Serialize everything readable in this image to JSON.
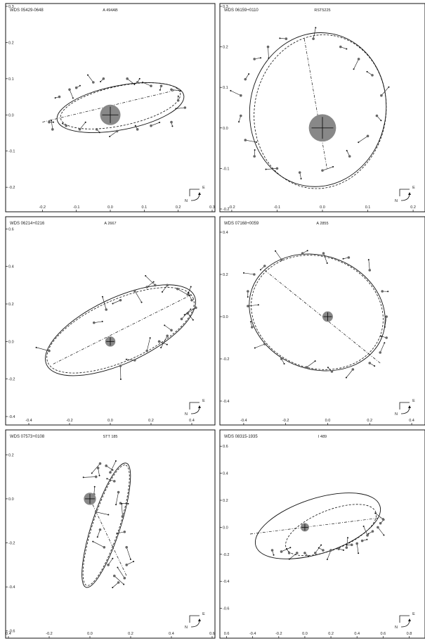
{
  "chart_data": [
    {
      "type": "scatter",
      "title": "WDS 05429-0648",
      "subtitle": "A  494AB",
      "xticks": [
        "-0.2",
        "-0.1",
        "0.0",
        "0.1",
        "0.2",
        "0.3"
      ],
      "yticks": [
        "0.3",
        "0.2",
        "0.1",
        "0.0",
        "-0.1",
        "-0.2"
      ],
      "xlim": [
        -0.3,
        0.3
      ],
      "ylim": [
        -0.26,
        0.3
      ],
      "compass": [
        "N",
        "E"
      ],
      "orbit": {
        "cx": 0.03,
        "cy": 0.02,
        "a": 0.19,
        "b": 0.065,
        "rot": 11
      },
      "orbit2": {
        "cx": 0.03,
        "cy": 0.025,
        "a": 0.18,
        "b": 0.058,
        "rot": 12
      },
      "node_line": [
        [
          -0.2,
          -0.02
        ],
        [
          0.2,
          0.07
        ]
      ],
      "primary": {
        "x": 0,
        "y": 0,
        "r": 0.03
      },
      "obs": [
        [
          -0.18,
          -0.02
        ],
        [
          -0.17,
          -0.04
        ],
        [
          -0.15,
          0.05
        ],
        [
          -0.12,
          0.07
        ],
        [
          -0.1,
          0.075
        ],
        [
          -0.05,
          0.09
        ],
        [
          -0.02,
          0.1
        ],
        [
          0.05,
          0.1
        ],
        [
          0.08,
          0.09
        ],
        [
          0.12,
          0.08
        ],
        [
          0.15,
          0.08
        ],
        [
          0.18,
          0.07
        ],
        [
          0.2,
          0.04
        ],
        [
          0.22,
          0.02
        ],
        [
          0.18,
          -0.02
        ],
        [
          0.12,
          -0.03
        ],
        [
          0.08,
          -0.04
        ],
        [
          0.02,
          -0.045
        ],
        [
          -0.04,
          -0.04
        ],
        [
          -0.09,
          -0.04
        ],
        [
          -0.13,
          -0.03
        ]
      ]
    },
    {
      "type": "scatter",
      "title": "WDS 06159+0110",
      "subtitle": "RST5225",
      "xticks": [
        "-0.2",
        "-0.1",
        "0.0",
        "0.1",
        "0.2"
      ],
      "yticks": [
        "0.3",
        "0.2",
        "0.1",
        "0.0",
        "-0.1",
        "-0.2"
      ],
      "xlim": [
        -0.22,
        0.22
      ],
      "ylim": [
        -0.2,
        0.3
      ],
      "compass": [
        "N",
        "E"
      ],
      "orbit": {
        "cx": -0.01,
        "cy": 0.045,
        "a": 0.17,
        "b": 0.15,
        "rot": 80
      },
      "orbit2": {
        "cx": -0.005,
        "cy": 0.04,
        "a": 0.17,
        "b": 0.145,
        "rot": 80
      },
      "node_line": [
        [
          -0.04,
          0.22
        ],
        [
          0.01,
          -0.1
        ]
      ],
      "primary": {
        "x": 0,
        "y": 0,
        "r": 0.03
      },
      "obs": [
        [
          -0.17,
          0.12
        ],
        [
          -0.18,
          0.08
        ],
        [
          -0.18,
          0.03
        ],
        [
          -0.17,
          -0.03
        ],
        [
          -0.15,
          -0.07
        ],
        [
          -0.1,
          -0.1
        ],
        [
          -0.05,
          -0.11
        ],
        [
          0.0,
          -0.105
        ],
        [
          0.06,
          -0.07
        ],
        [
          0.1,
          -0.02
        ],
        [
          0.12,
          0.03
        ],
        [
          0.13,
          0.08
        ],
        [
          0.11,
          0.13
        ],
        [
          0.08,
          0.17
        ],
        [
          0.04,
          0.2
        ],
        [
          -0.02,
          0.22
        ],
        [
          -0.08,
          0.22
        ],
        [
          -0.12,
          0.2
        ],
        [
          -0.15,
          0.17
        ]
      ]
    },
    {
      "type": "scatter",
      "title": "WDS 06214+0216",
      "subtitle": "A  2667",
      "xticks": [
        "-0.4",
        "-0.2",
        "0.0",
        "0.2",
        "0.4"
      ],
      "yticks": [
        "0.6",
        "0.4",
        "0.2",
        "0.0",
        "-0.2",
        "-0.4"
      ],
      "xlim": [
        -0.5,
        0.5
      ],
      "ylim": [
        -0.43,
        0.65
      ],
      "compass": [
        "N",
        "E"
      ],
      "orbit": {
        "cx": 0.05,
        "cy": 0.06,
        "a": 0.4,
        "b": 0.16,
        "rot": 25
      },
      "orbit2": {
        "cx": 0.05,
        "cy": 0.06,
        "a": 0.39,
        "b": 0.15,
        "rot": 24
      },
      "node_line": [
        [
          -0.28,
          -0.12
        ],
        [
          0.4,
          0.25
        ]
      ],
      "primary": {
        "x": 0,
        "y": 0,
        "r": 0.025
      },
      "obs": [
        [
          0.4,
          0.22
        ],
        [
          0.42,
          0.18
        ],
        [
          0.38,
          0.15
        ],
        [
          0.35,
          0.12
        ],
        [
          0.3,
          0.06
        ],
        [
          0.28,
          0.03
        ],
        [
          0.24,
          0.0
        ],
        [
          0.18,
          -0.05
        ],
        [
          0.12,
          -0.1
        ],
        [
          0.05,
          -0.13
        ],
        [
          -0.08,
          0.1
        ],
        [
          -0.02,
          0.17
        ],
        [
          0.05,
          0.22
        ],
        [
          0.12,
          0.27
        ],
        [
          0.18,
          0.29
        ],
        [
          0.22,
          0.3
        ],
        [
          0.28,
          0.3
        ],
        [
          0.33,
          0.28
        ],
        [
          0.38,
          0.25
        ],
        [
          -0.3,
          -0.05
        ]
      ]
    },
    {
      "type": "scatter",
      "title": "WDS 07168+0059",
      "subtitle": "A  2855",
      "xticks": [
        "-0.4",
        "-0.2",
        "0.0",
        "0.2",
        "0.4"
      ],
      "yticks": [
        "0.4",
        "0.2",
        "0.0",
        "-0.2",
        "-0.4"
      ],
      "xlim": [
        -0.5,
        0.45
      ],
      "ylim": [
        -0.5,
        0.46
      ],
      "compass": [
        "N",
        "E"
      ],
      "orbit": {
        "cx": -0.05,
        "cy": 0.02,
        "a": 0.33,
        "b": 0.27,
        "rot": -20
      },
      "orbit2": {
        "cx": -0.05,
        "cy": 0.02,
        "a": 0.32,
        "b": 0.265,
        "rot": -20
      },
      "node_line": [
        [
          -0.3,
          0.22
        ],
        [
          0.25,
          -0.22
        ]
      ],
      "primary": {
        "x": 0,
        "y": 0,
        "r": 0.025
      },
      "obs": [
        [
          -0.35,
          0.2
        ],
        [
          -0.38,
          0.12
        ],
        [
          -0.38,
          0.05
        ],
        [
          -0.36,
          -0.05
        ],
        [
          -0.3,
          -0.13
        ],
        [
          -0.22,
          -0.2
        ],
        [
          -0.1,
          -0.24
        ],
        [
          0.02,
          -0.26
        ],
        [
          0.12,
          -0.25
        ],
        [
          0.2,
          -0.22
        ],
        [
          0.25,
          -0.17
        ],
        [
          0.28,
          -0.1
        ],
        [
          0.28,
          0.0
        ],
        [
          0.26,
          0.12
        ],
        [
          0.2,
          0.22
        ],
        [
          0.1,
          0.28
        ],
        [
          -0.02,
          0.3
        ],
        [
          -0.12,
          0.3
        ],
        [
          -0.22,
          0.27
        ],
        [
          -0.3,
          0.24
        ]
      ]
    },
    {
      "type": "scatter",
      "title": "WDS 07573+0108",
      "subtitle": "STT 185",
      "xticks": [
        "0.4",
        "-0.2",
        "0.0",
        "0.2",
        "0.4",
        "0.6"
      ],
      "yticks": [
        "0.2",
        "0.0",
        "-0.2",
        "-0.4",
        "-0.6"
      ],
      "xlim": [
        -0.4,
        0.6
      ],
      "ylim": [
        -0.62,
        0.3
      ],
      "compass": [
        "N",
        "E"
      ],
      "orbit": {
        "cx": 0.08,
        "cy": -0.12,
        "a": 0.32,
        "b": 0.07,
        "rot": 72
      },
      "orbit2": {
        "cx": 0.08,
        "cy": -0.12,
        "a": 0.31,
        "b": 0.065,
        "rot": 72
      },
      "node_line": [
        [
          0.0,
          0.0
        ],
        [
          0.18,
          -0.35
        ]
      ],
      "primary": {
        "x": 0,
        "y": 0,
        "r": 0.03
      },
      "obs": [
        [
          0.05,
          0.16
        ],
        [
          0.08,
          0.15
        ],
        [
          0.1,
          0.12
        ],
        [
          0.12,
          0.08
        ],
        [
          0.14,
          0.03
        ],
        [
          0.15,
          -0.02
        ],
        [
          0.16,
          -0.08
        ],
        [
          0.17,
          -0.15
        ],
        [
          0.18,
          -0.22
        ],
        [
          0.18,
          -0.3
        ],
        [
          0.17,
          -0.36
        ],
        [
          0.14,
          -0.38
        ],
        [
          0.12,
          -0.35
        ],
        [
          0.09,
          -0.3
        ],
        [
          0.07,
          -0.22
        ],
        [
          0.05,
          -0.14
        ],
        [
          0.03,
          -0.06
        ],
        [
          0.02,
          0.02
        ],
        [
          0.03,
          0.1
        ],
        [
          0.04,
          0.14
        ]
      ]
    },
    {
      "type": "scatter",
      "title": "WDS 08315-1935",
      "subtitle": "I  489",
      "xticks": [
        "0.6",
        "-0.4",
        "-0.2",
        "0.0",
        "0.2",
        "0.4",
        "0.6",
        "0.8"
      ],
      "yticks": [
        "0.6",
        "0.4",
        "0.2",
        "0.0",
        "-0.2",
        "-0.4",
        "-0.6"
      ],
      "xlim": [
        -0.63,
        0.9
      ],
      "ylim": [
        -0.8,
        0.7
      ],
      "compass": [
        "N",
        "E"
      ],
      "orbit": {
        "cx": 0.1,
        "cy": 0.01,
        "a": 0.5,
        "b": 0.21,
        "rot": 18
      },
      "orbit2": {
        "cx": 0.2,
        "cy": -0.02,
        "a": 0.37,
        "b": 0.15,
        "rot": 22
      },
      "node_line": [
        [
          -0.42,
          -0.05
        ],
        [
          0.58,
          0.07
        ]
      ],
      "primary": {
        "x": 0,
        "y": 0,
        "r": 0.025
      },
      "obs": [
        [
          -0.25,
          -0.17
        ],
        [
          -0.18,
          -0.18
        ],
        [
          -0.12,
          -0.19
        ],
        [
          -0.06,
          -0.19
        ],
        [
          0.0,
          -0.19
        ],
        [
          0.08,
          -0.19
        ],
        [
          0.14,
          -0.17
        ],
        [
          0.2,
          -0.17
        ],
        [
          0.26,
          -0.16
        ],
        [
          0.32,
          -0.15
        ],
        [
          0.36,
          -0.13
        ],
        [
          0.4,
          -0.12
        ],
        [
          0.44,
          -0.1
        ],
        [
          0.48,
          -0.06
        ],
        [
          0.52,
          -0.03
        ],
        [
          0.56,
          0.0
        ],
        [
          0.58,
          0.03
        ],
        [
          0.6,
          0.06
        ]
      ]
    }
  ]
}
